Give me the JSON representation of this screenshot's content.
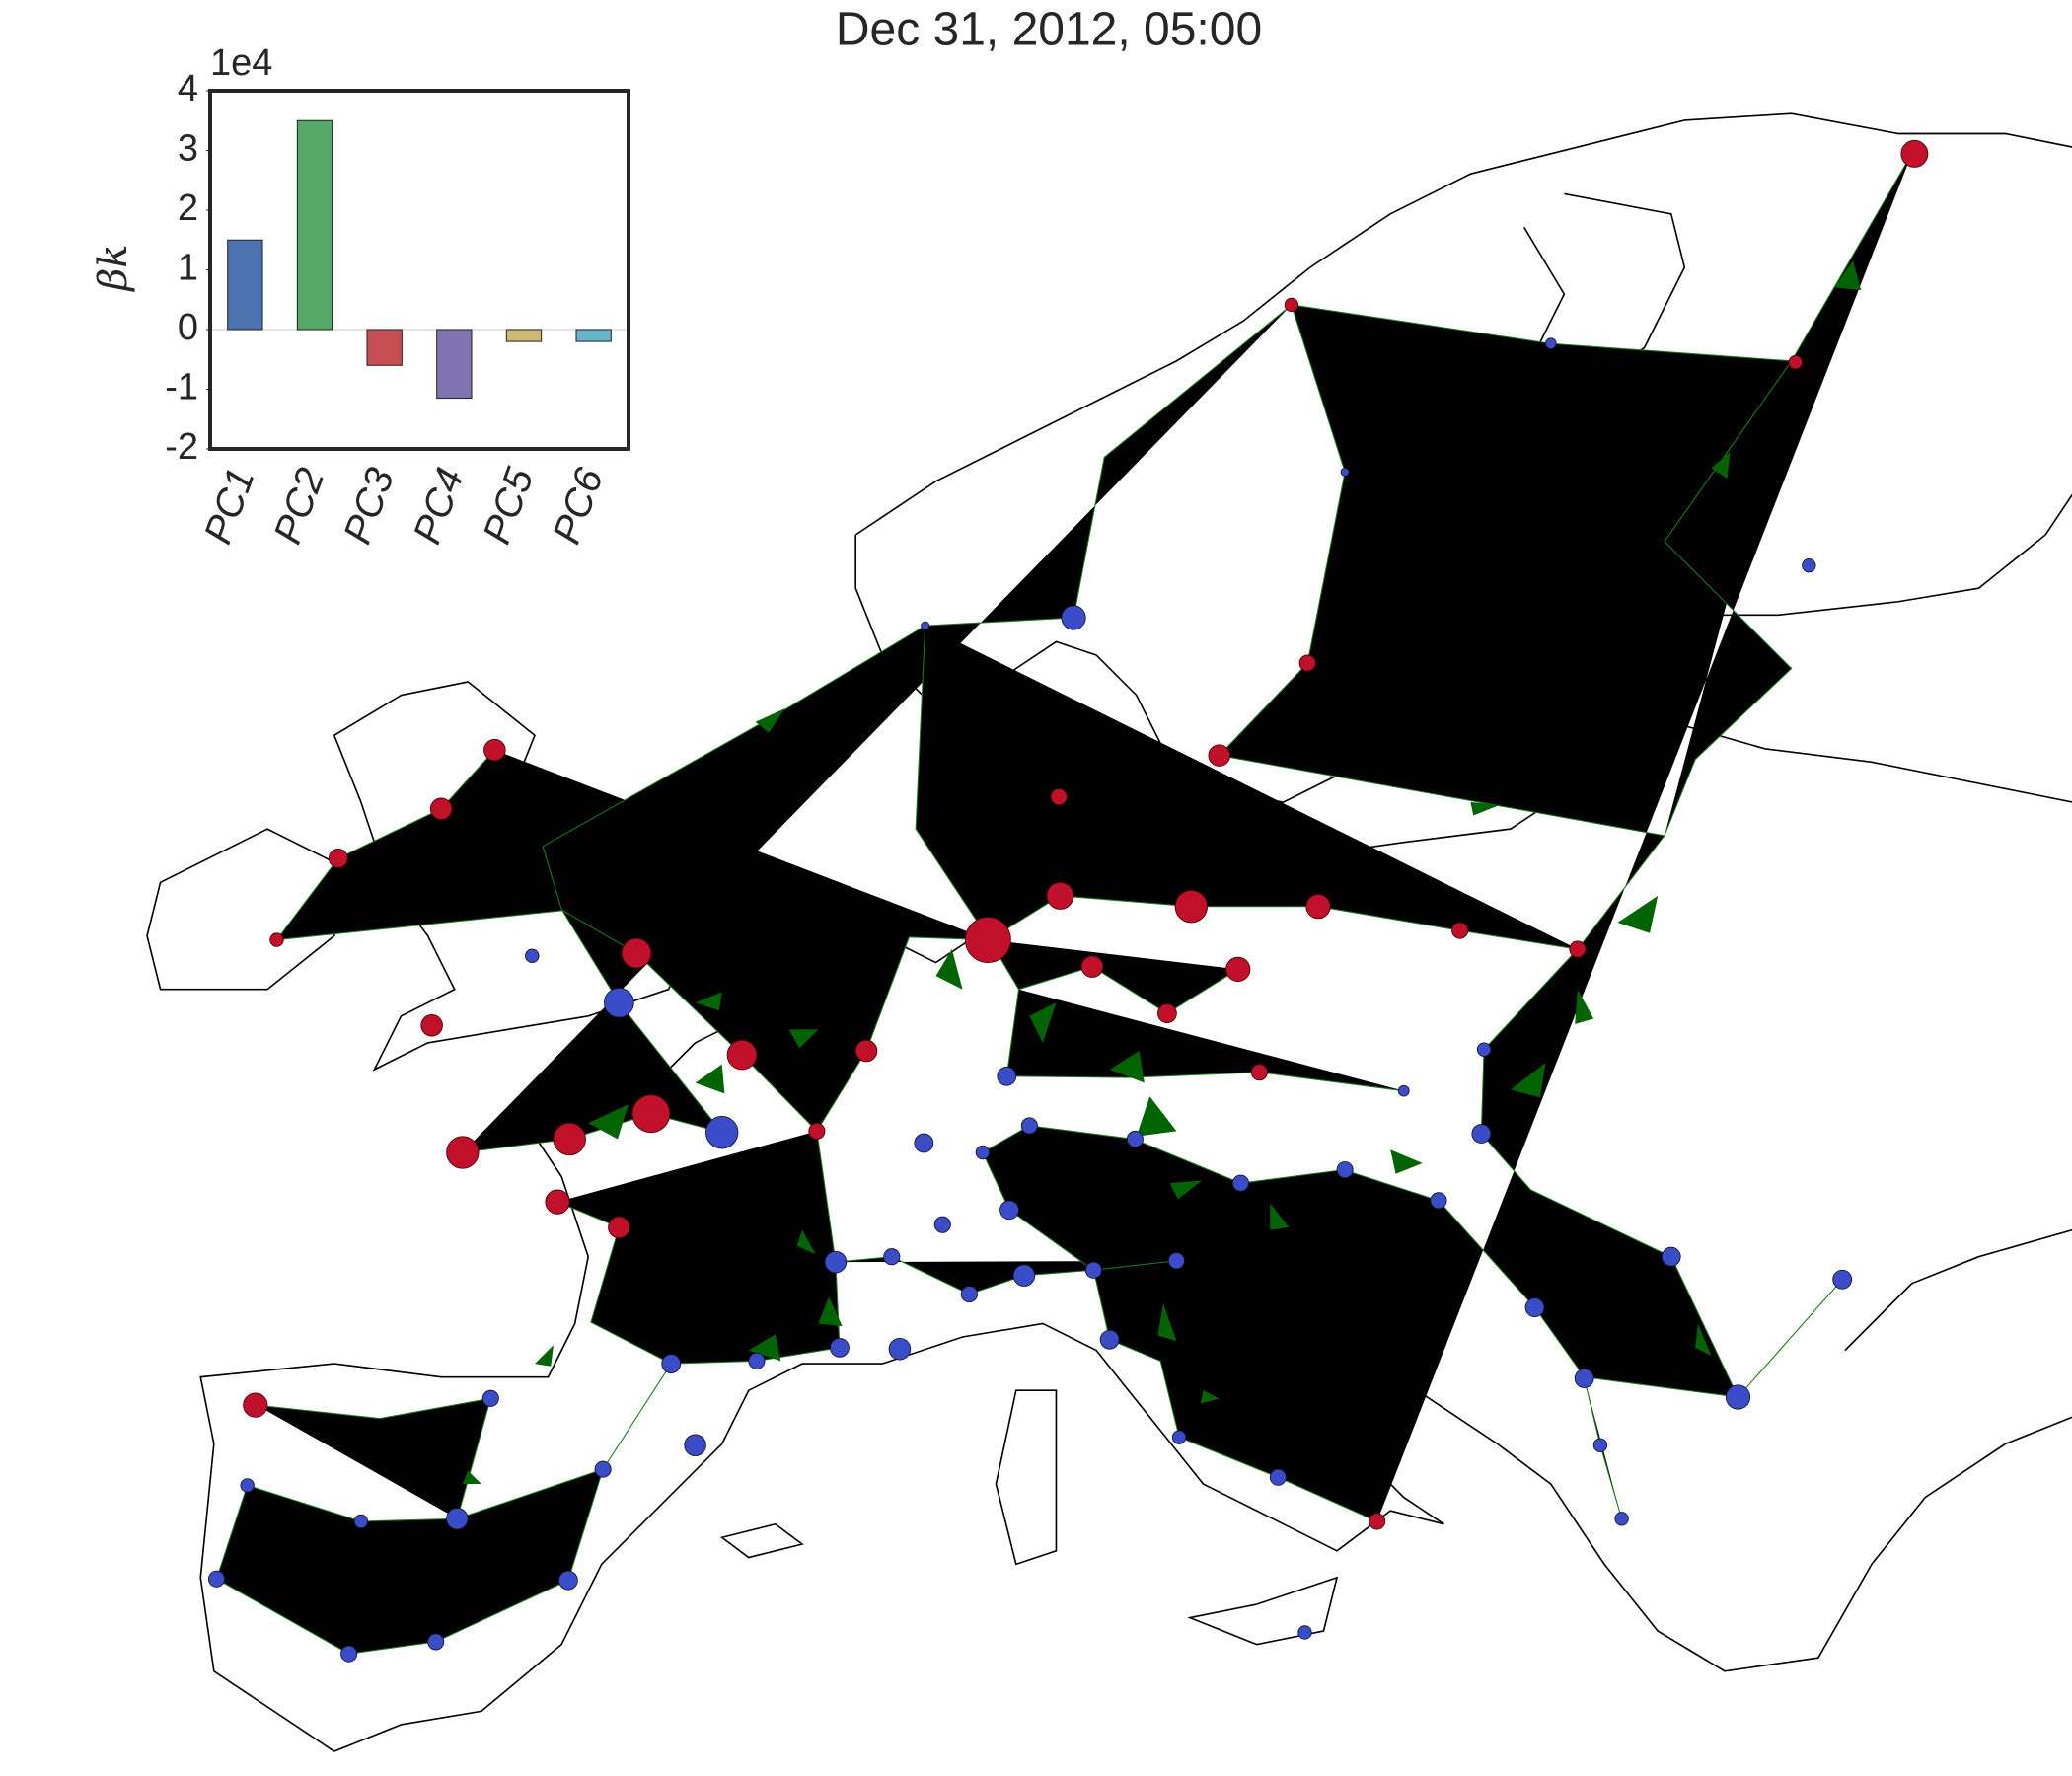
{
  "chart_data": {
    "type": "bar",
    "title": "Dec 31, 2012, 05:00",
    "ylabel": "βk",
    "offset_label": "1e4",
    "categories": [
      "PC1",
      "PC2",
      "PC3",
      "PC4",
      "PC5",
      "PC6"
    ],
    "values": [
      1.5,
      3.5,
      -0.6,
      -1.15,
      -0.2,
      -0.2
    ],
    "colors": [
      "#4c72b0",
      "#55a868",
      "#c44e52",
      "#8172b2",
      "#ccb974",
      "#64b5cd"
    ],
    "ylim": [
      -2,
      4
    ],
    "yticks": [
      -2,
      -1,
      0,
      1,
      2,
      3,
      4
    ],
    "grid": false
  }
}
